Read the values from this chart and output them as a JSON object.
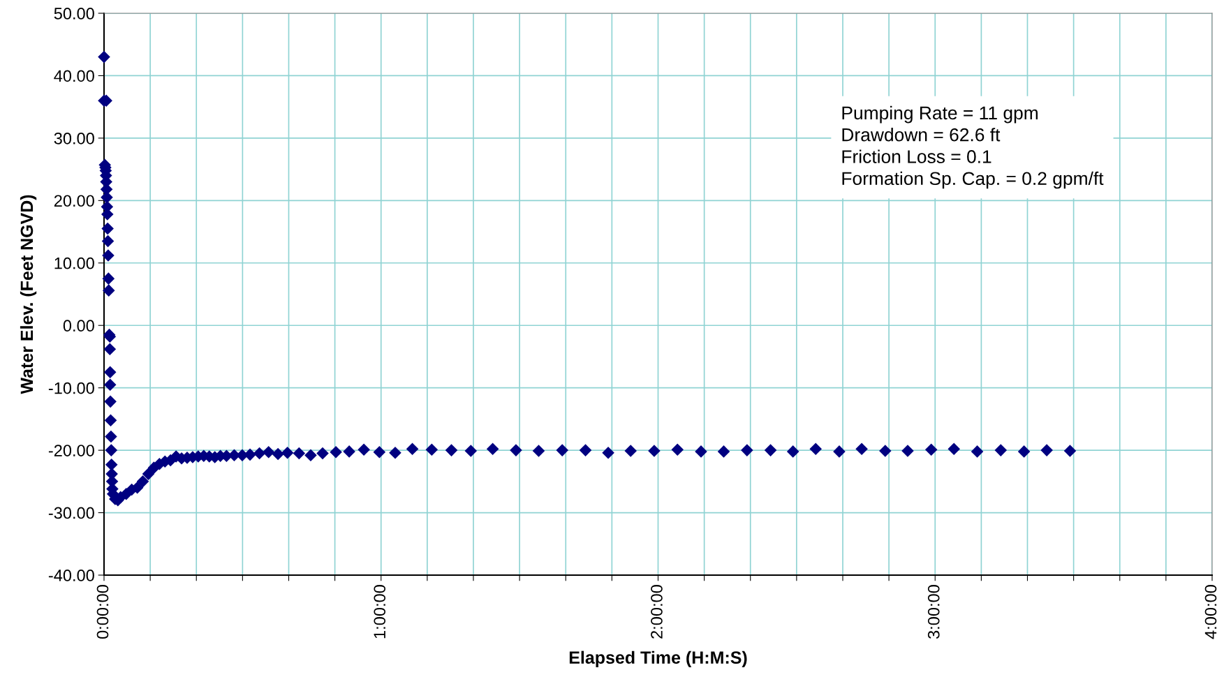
{
  "chart_data": {
    "type": "scatter",
    "xlabel": "Elapsed Time (H:M:S)",
    "ylabel": "Water Elev. (Feet NGVD)",
    "annotations": [
      "Pumping Rate = 11 gpm",
      "Drawdown = 62.6 ft",
      "Friction Loss = 0.1",
      "Formation Sp. Cap. = 0.2 gpm/ft"
    ],
    "marker": "diamond",
    "grid": true,
    "legend": false,
    "xlim": [
      0,
      4
    ],
    "ylim": [
      -40,
      50
    ],
    "xticks": [
      {
        "value": 0,
        "label": "0:00:00"
      },
      {
        "value": 0.1667,
        "label": null
      },
      {
        "value": 0.3333,
        "label": null
      },
      {
        "value": 0.5,
        "label": null
      },
      {
        "value": 0.6667,
        "label": null
      },
      {
        "value": 0.8333,
        "label": null
      },
      {
        "value": 1,
        "label": "1:00:00"
      },
      {
        "value": 1.1667,
        "label": null
      },
      {
        "value": 1.3333,
        "label": null
      },
      {
        "value": 1.5,
        "label": null
      },
      {
        "value": 1.6667,
        "label": null
      },
      {
        "value": 1.8333,
        "label": null
      },
      {
        "value": 2,
        "label": "2:00:00"
      },
      {
        "value": 2.1667,
        "label": null
      },
      {
        "value": 2.3333,
        "label": null
      },
      {
        "value": 2.5,
        "label": null
      },
      {
        "value": 2.6667,
        "label": null
      },
      {
        "value": 2.8333,
        "label": null
      },
      {
        "value": 3,
        "label": "3:00:00"
      },
      {
        "value": 3.1667,
        "label": null
      },
      {
        "value": 3.3333,
        "label": null
      },
      {
        "value": 3.5,
        "label": null
      },
      {
        "value": 3.6667,
        "label": null
      },
      {
        "value": 3.8333,
        "label": null
      },
      {
        "value": 4,
        "label": "4:00:00"
      }
    ],
    "yticks": [
      {
        "value": -40,
        "label": "-40.00"
      },
      {
        "value": -30,
        "label": "-30.00"
      },
      {
        "value": -20,
        "label": "-20.00"
      },
      {
        "value": -10,
        "label": "-10.00"
      },
      {
        "value": 0,
        "label": "0.00"
      },
      {
        "value": 10,
        "label": "10.00"
      },
      {
        "value": 20,
        "label": "20.00"
      },
      {
        "value": 30,
        "label": "30.00"
      },
      {
        "value": 40,
        "label": "40.00"
      },
      {
        "value": 50,
        "label": "50.00"
      }
    ],
    "series": [
      {
        "color": "#000080",
        "x": [
          0.0,
          0.0,
          0.008,
          0.003,
          0.005,
          0.006,
          0.007,
          0.008,
          0.009,
          0.01,
          0.011,
          0.012,
          0.013,
          0.014,
          0.015,
          0.016,
          0.017,
          0.019,
          0.021,
          0.021,
          0.022,
          0.022,
          0.023,
          0.024,
          0.025,
          0.026,
          0.027,
          0.028,
          0.029,
          0.03,
          0.032,
          0.04,
          0.05,
          0.06,
          0.08,
          0.1,
          0.12,
          0.14,
          0.16,
          0.18,
          0.2,
          0.22,
          0.24,
          0.26,
          0.28,
          0.3,
          0.32,
          0.34,
          0.36,
          0.38,
          0.4,
          0.42,
          0.442,
          0.47,
          0.499,
          0.527,
          0.561,
          0.594,
          0.628,
          0.662,
          0.704,
          0.746,
          0.789,
          0.837,
          0.885,
          0.938,
          0.994,
          1.051,
          1.113,
          1.183,
          1.254,
          1.324,
          1.403,
          1.487,
          1.569,
          1.654,
          1.738,
          1.82,
          1.901,
          1.986,
          2.07,
          2.155,
          2.237,
          2.321,
          2.406,
          2.487,
          2.569,
          2.654,
          2.735,
          2.82,
          2.901,
          2.986,
          3.068,
          3.152,
          3.237,
          3.321,
          3.403,
          3.487
        ],
        "values": [
          43,
          36,
          36,
          25.7,
          25.3,
          24.8,
          24,
          23,
          21.8,
          20.5,
          19,
          17.8,
          15.5,
          13.5,
          11.2,
          7.5,
          5.6,
          -1.5,
          -1.8,
          -3.8,
          -7.5,
          -9.5,
          -12.2,
          -15.2,
          -17.8,
          -20,
          -22.3,
          -23.8,
          -25,
          -26.2,
          -27,
          -27.8,
          -28,
          -27.5,
          -27,
          -26.3,
          -26,
          -25,
          -23.8,
          -22.8,
          -22.2,
          -21.8,
          -21.6,
          -21,
          -21.3,
          -21.2,
          -21.1,
          -21,
          -20.9,
          -21,
          -21.1,
          -20.9,
          -20.9,
          -20.8,
          -20.8,
          -20.7,
          -20.5,
          -20.3,
          -20.6,
          -20.4,
          -20.5,
          -20.8,
          -20.5,
          -20.3,
          -20.2,
          -19.9,
          -20.3,
          -20.4,
          -19.8,
          -19.9,
          -20,
          -20.1,
          -19.8,
          -20,
          -20.1,
          -20,
          -20,
          -20.4,
          -20.1,
          -20.1,
          -19.9,
          -20.2,
          -20.2,
          -20,
          -20,
          -20.2,
          -19.8,
          -20.2,
          -19.8,
          -20.1,
          -20.1,
          -19.9,
          -19.8,
          -20.2,
          -20,
          -20.2,
          -20,
          -20.1
        ]
      }
    ]
  }
}
